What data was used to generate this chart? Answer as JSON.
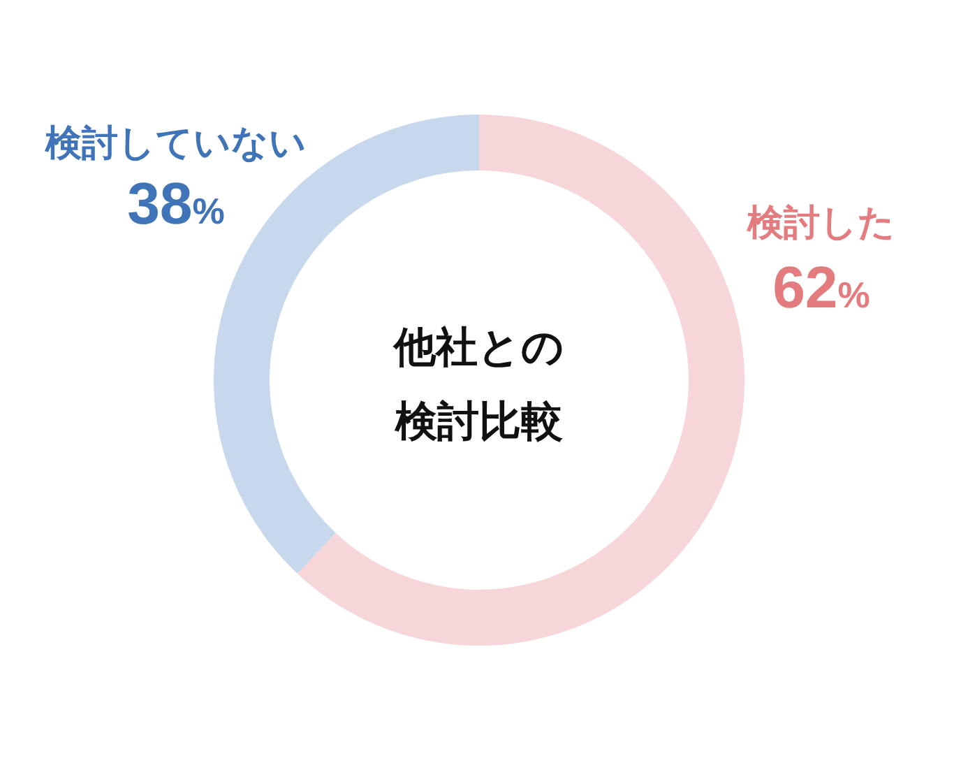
{
  "chart_data": {
    "type": "donut",
    "title": "他社との検討比較",
    "categories": [
      "検討した",
      "検討していない"
    ],
    "values": [
      62,
      38
    ],
    "colors": [
      "#f6d6d8",
      "#c8d8ec"
    ],
    "value_labels": [
      "62%",
      "38%"
    ]
  }
}
